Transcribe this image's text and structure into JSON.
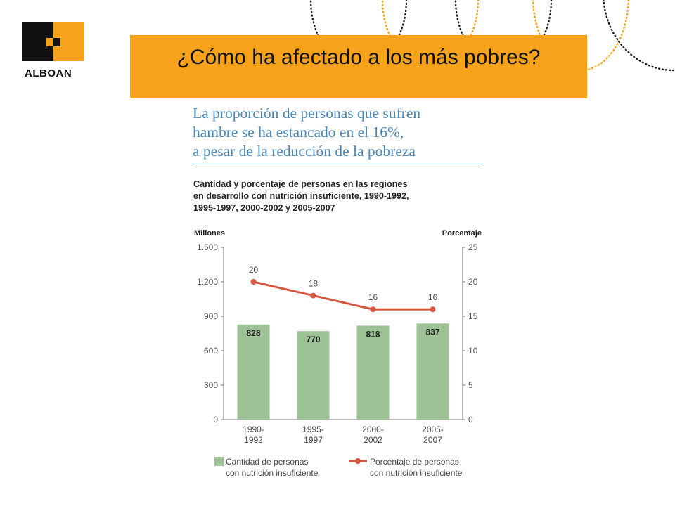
{
  "logo": {
    "text": "ALBOAN",
    "colors": {
      "dark": "#111111",
      "orange": "#f7a21b"
    }
  },
  "banner": {
    "title": "¿Cómo ha afectado a los más pobres?",
    "color": "#f7a21b"
  },
  "subtitle": {
    "lines": [
      "La proporción de personas que sufren",
      "hambre se ha estancado en el 16%,",
      "a pesar de la reducción de la pobreza"
    ],
    "color": "#4a87b8"
  },
  "chart_description": {
    "lines": [
      "Cantidad y porcentaje de personas en las regiones",
      "en desarrollo con nutrición insuficiente, 1990-1992,",
      "1995-1997, 2000-2002 y 2005-2007"
    ]
  },
  "chart_data": {
    "type": "bar",
    "left_axis_title": "Millones",
    "right_axis_title": "Porcentaje",
    "categories": [
      [
        "1990-",
        "1992"
      ],
      [
        "1995-",
        "1997"
      ],
      [
        "2000-",
        "2002"
      ],
      [
        "2005-",
        "2007"
      ]
    ],
    "y_left": {
      "min": 0,
      "max": 1500,
      "ticks": [
        0,
        300,
        600,
        900,
        1200,
        1500
      ],
      "tick_labels": [
        "0",
        "300",
        "600",
        "900",
        "1.200",
        "1.500"
      ]
    },
    "y_right": {
      "min": 0,
      "max": 25,
      "ticks": [
        0,
        5,
        10,
        15,
        20,
        25
      ],
      "tick_labels": [
        "0",
        "5",
        "10",
        "15",
        "20",
        "25"
      ]
    },
    "series": [
      {
        "name": "Cantidad de personas con nutrición insuficiente",
        "legend_lines": [
          "Cantidad de personas",
          "con nutrición insuficiente"
        ],
        "type": "bar",
        "axis": "left",
        "values": [
          828,
          770,
          818,
          837
        ],
        "labels": [
          "828",
          "770",
          "818",
          "837"
        ],
        "color": "#9cc295"
      },
      {
        "name": "Porcentaje de personas con nutrición insuficiente",
        "legend_lines": [
          "Porcentaje de personas",
          "con nutrición insuficiente"
        ],
        "type": "line",
        "axis": "right",
        "values": [
          20,
          18,
          16,
          16
        ],
        "labels": [
          "20",
          "18",
          "16",
          "16"
        ],
        "color": "#d6573f"
      }
    ],
    "grid": false,
    "legend_position": "bottom"
  }
}
